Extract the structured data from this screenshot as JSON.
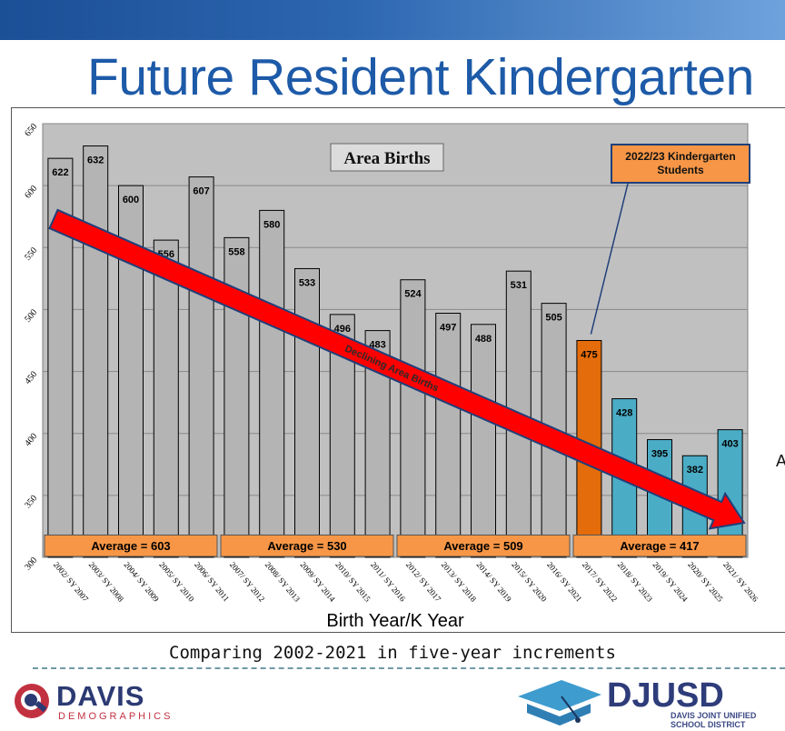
{
  "slide": {
    "title": "Future Resident Kindergarten",
    "caption": "Comparing 2002-2021 in five-year increments",
    "colors": {
      "topbar": "#2d67b0",
      "title": "#1d5aa8"
    }
  },
  "chart_data": {
    "type": "bar",
    "title": "Area Births",
    "xlabel": "Birth Year/K Year",
    "ylabel": "",
    "ylim": [
      300,
      650
    ],
    "yticks": [
      300,
      350,
      400,
      450,
      500,
      550,
      600,
      650
    ],
    "grid": true,
    "categories": [
      "2002/ SY 2007",
      "2003/ SY 2008",
      "2004/ SY 2009",
      "2005/ SY 2010",
      "2006/ SY 2011",
      "2007/ SY 2012",
      "2008/ SY 2013",
      "2009/ SY 2014",
      "2010/ SY 2015",
      "2011/ SY 2016",
      "2012/ SY 2017",
      "2013/ SY 2018",
      "2014/ SY 2019",
      "2015/ SY 2020",
      "2016/ SY 2021",
      "2017/ SY 2022",
      "2018/ SY 2023",
      "2019/ SY 2024",
      "2020/ SY 2025",
      "2021/ SY 2026"
    ],
    "values": [
      622,
      632,
      600,
      556,
      607,
      558,
      580,
      533,
      496,
      483,
      524,
      497,
      488,
      531,
      505,
      475,
      428,
      395,
      382,
      403
    ],
    "bar_colors": [
      "#b4b4b4",
      "#b4b4b4",
      "#b4b4b4",
      "#b4b4b4",
      "#b4b4b4",
      "#b4b4b4",
      "#b4b4b4",
      "#b4b4b4",
      "#b4b4b4",
      "#b4b4b4",
      "#b4b4b4",
      "#b4b4b4",
      "#b4b4b4",
      "#b4b4b4",
      "#b4b4b4",
      "#e46c0a",
      "#4bacc6",
      "#4bacc6",
      "#4bacc6",
      "#4bacc6"
    ],
    "averages": [
      {
        "label": "Average = 603",
        "from": 0,
        "to": 4
      },
      {
        "label": "Average = 530",
        "from": 5,
        "to": 9
      },
      {
        "label": "Average = 509",
        "from": 10,
        "to": 14
      },
      {
        "label": "Average = 417",
        "from": 15,
        "to": 19
      }
    ],
    "callout": {
      "text_line1": "2022/23 Kindergarten",
      "text_line2": "Students",
      "points_to": 15
    },
    "trend_arrow": {
      "label": "Declining Area Births",
      "color": "#ff0000"
    },
    "plot_background": "#c0c0c0",
    "average_box_color": "#f79646"
  },
  "logos": {
    "davis": {
      "name": "DAVIS",
      "sub": "DEMOGRAPHICS"
    },
    "djusd": {
      "name": "DJUSD",
      "sub1": "DAVIS JOINT UNIFIED",
      "sub2": "SCHOOL DISTRICT"
    }
  },
  "side_partial_text": "A"
}
